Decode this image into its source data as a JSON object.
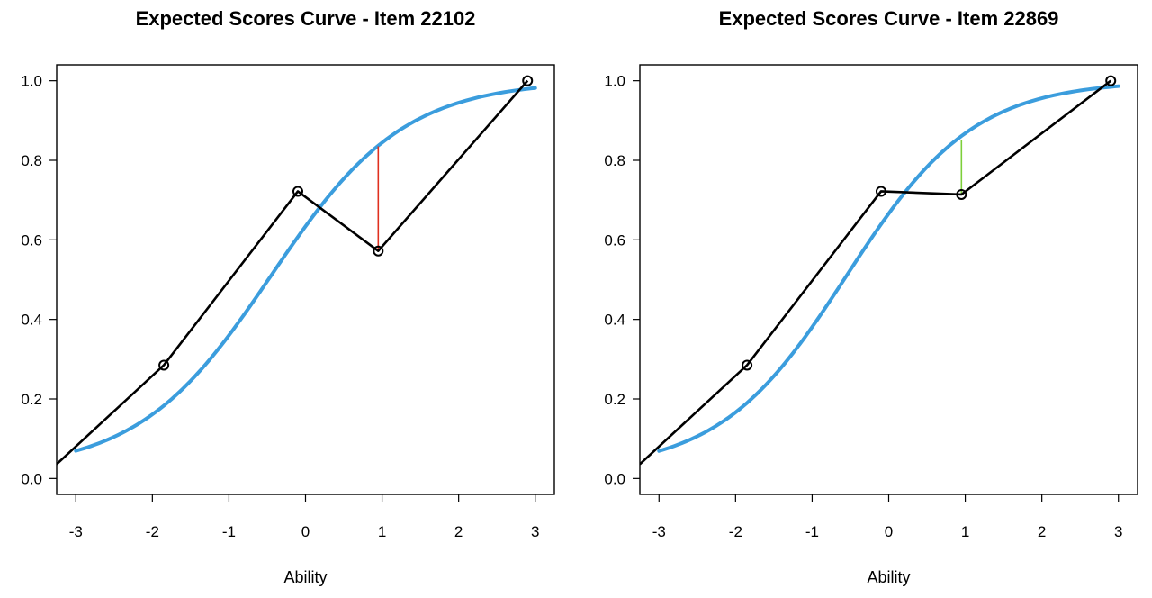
{
  "chart_data": [
    {
      "type": "line",
      "title": "Expected Scores Curve - Item  22102",
      "xlabel": "Ability",
      "ylabel": "",
      "xlim": [
        -3.25,
        3.25
      ],
      "ylim": [
        -0.04,
        1.04
      ],
      "x_ticks": [
        "-3",
        "-2",
        "-1",
        "0",
        "1",
        "2",
        "3"
      ],
      "y_ticks": [
        "0.0",
        "0.2",
        "0.4",
        "0.6",
        "0.8",
        "1.0"
      ],
      "model_curve": {
        "color": "#3b9ddd",
        "x_range": [
          -3.0,
          3.0
        ],
        "a": 1.15,
        "b": -0.45,
        "c": 0.02
      },
      "observed": {
        "color": "#000000",
        "x": [
          -3.25,
          -1.85,
          -0.1,
          0.95,
          2.9
        ],
        "y": [
          0.036,
          0.285,
          0.722,
          0.572,
          1.0
        ],
        "markers": [
          false,
          true,
          true,
          true,
          true
        ]
      },
      "residual": {
        "x": 0.95,
        "from": 0.572,
        "to": 0.835,
        "color": "#e0301e"
      }
    },
    {
      "type": "line",
      "title": "Expected Scores Curve - Item  22869",
      "xlabel": "Ability",
      "ylabel": "",
      "xlim": [
        -3.25,
        3.25
      ],
      "ylim": [
        -0.04,
        1.04
      ],
      "x_ticks": [
        "-3",
        "-2",
        "-1",
        "0",
        "1",
        "2",
        "3"
      ],
      "y_ticks": [
        "0.0",
        "0.2",
        "0.4",
        "0.6",
        "0.8",
        "1.0"
      ],
      "model_curve": {
        "color": "#3b9ddd",
        "x_range": [
          -3.0,
          3.0
        ],
        "a": 1.2,
        "b": -0.55,
        "c": 0.02
      },
      "observed": {
        "color": "#000000",
        "x": [
          -3.25,
          -1.85,
          -0.1,
          0.95,
          2.9
        ],
        "y": [
          0.036,
          0.285,
          0.722,
          0.714,
          1.0
        ],
        "markers": [
          false,
          true,
          true,
          true,
          true
        ]
      },
      "residual": {
        "x": 0.95,
        "from": 0.714,
        "to": 0.852,
        "color": "#7dcf3a"
      }
    }
  ]
}
